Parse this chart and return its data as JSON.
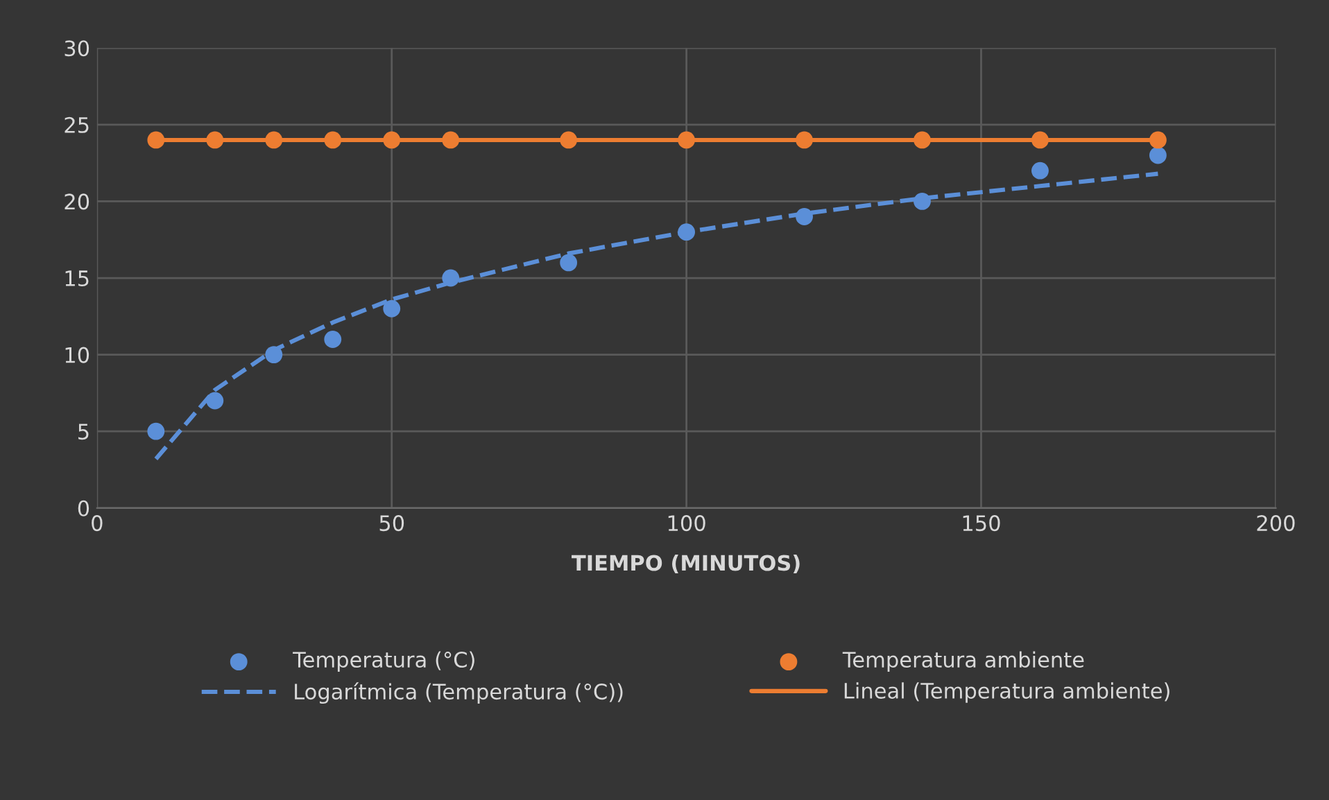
{
  "chart_data": {
    "type": "scatter",
    "xlabel": "TIEMPO (MINUTOS)",
    "xlim": [
      0,
      200
    ],
    "xticks": [
      0,
      50,
      100,
      150,
      200
    ],
    "ylim": [
      0,
      30
    ],
    "yticks": [
      0,
      5,
      10,
      15,
      20,
      25,
      30
    ],
    "grid": true,
    "legend": "bottom",
    "series": [
      {
        "name": "Temperatura (°C)",
        "marker": "circle",
        "color": "#5b8fd8",
        "x": [
          10,
          20,
          30,
          40,
          50,
          60,
          80,
          100,
          120,
          140,
          160,
          180
        ],
        "values": [
          5,
          7,
          10,
          11,
          13,
          15,
          16,
          18,
          19,
          20,
          22,
          23
        ]
      },
      {
        "name": "Logarítmica (Temperatura (°C))",
        "type": "line",
        "line_style": "dashed",
        "marker": "none",
        "color": "#5b8fd8",
        "x": [
          10,
          20,
          30,
          40,
          50,
          60,
          80,
          100,
          120,
          140,
          160,
          180
        ],
        "values": [
          3.2,
          7.7,
          10.3,
          12.1,
          13.6,
          14.7,
          16.6,
          18.0,
          19.2,
          20.2,
          21.0,
          21.8
        ]
      },
      {
        "name": "Temperatura ambiente",
        "marker": "circle",
        "color": "#ed7d31",
        "x": [
          10,
          20,
          30,
          40,
          50,
          60,
          80,
          100,
          120,
          140,
          160,
          180
        ],
        "values": [
          24,
          24,
          24,
          24,
          24,
          24,
          24,
          24,
          24,
          24,
          24,
          24
        ]
      },
      {
        "name": "Lineal (Temperatura ambiente)",
        "type": "line",
        "line_style": "solid",
        "marker": "none",
        "color": "#ed7d31",
        "x": [
          10,
          180
        ],
        "values": [
          24,
          24
        ]
      }
    ]
  }
}
